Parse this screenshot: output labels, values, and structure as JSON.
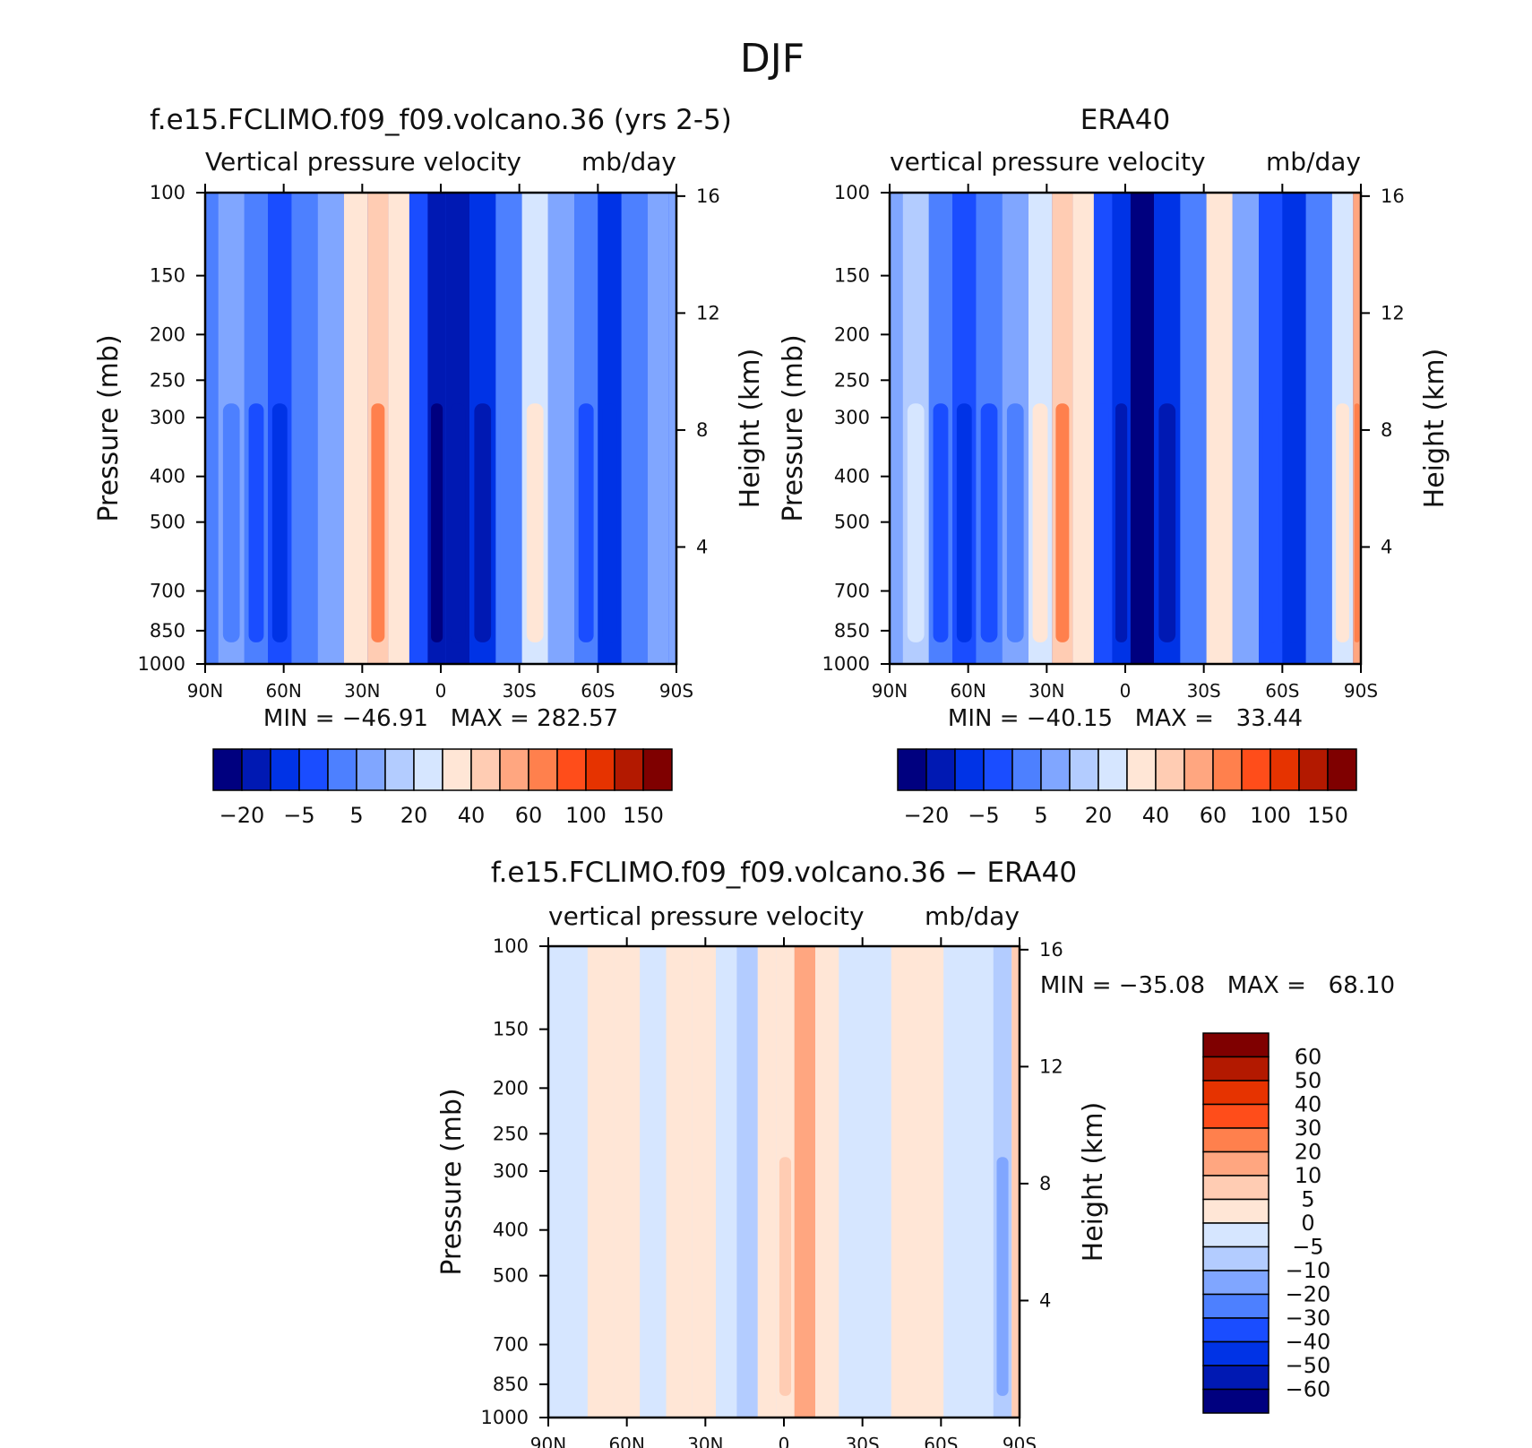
{
  "title": "DJF",
  "chart_data": [
    {
      "type": "contour",
      "title": "f.e15.FCLIMO.f09_f09.volcano.36 (yrs 2-5)",
      "subtitle": "Vertical pressure velocity",
      "units": "mb/day",
      "ylabel": "Pressure (mb)",
      "ylabel_right": "Height (km)",
      "x_ticks": [
        "90N",
        "60N",
        "30N",
        "0",
        "30S",
        "60S",
        "90S"
      ],
      "x_values": [
        90,
        60,
        30,
        0,
        -30,
        -60,
        -90
      ],
      "y_ticks": [
        100,
        150,
        200,
        250,
        300,
        400,
        500,
        700,
        850,
        1000
      ],
      "y_right_ticks": [
        16,
        12,
        8,
        4
      ],
      "ylim": [
        1000,
        100
      ],
      "stats": "MIN = −46.91   MAX = 282.57",
      "min": -46.91,
      "max": 282.57,
      "colorbar": {
        "orientation": "horizontal",
        "labels": [
          "−20",
          "−5",
          "5",
          "20",
          "40",
          "60",
          "100",
          "150"
        ],
        "colors": [
          "#00007f",
          "#0019b3",
          "#0033e6",
          "#1a4dff",
          "#4d80ff",
          "#80a6ff",
          "#b3ccff",
          "#d6e6ff",
          "#ffe6d6",
          "#ffccb3",
          "#ffa680",
          "#ff804d",
          "#ff4d1a",
          "#e63300",
          "#b31900",
          "#7f0000"
        ]
      },
      "columns": [
        {
          "lat": 90,
          "v": -6
        },
        {
          "lat": 80,
          "v": -4
        },
        {
          "lat": 70,
          "v": -9
        },
        {
          "lat": 62,
          "v": -12
        },
        {
          "lat": 52,
          "v": -6
        },
        {
          "lat": 42,
          "v": -2
        },
        {
          "lat": 32,
          "v": 12
        },
        {
          "lat": 24,
          "v": 30
        },
        {
          "lat": 16,
          "v": 12
        },
        {
          "lat": 8,
          "v": -10
        },
        {
          "lat": 2,
          "v": -38
        },
        {
          "lat": -6,
          "v": -28
        },
        {
          "lat": -16,
          "v": -22
        },
        {
          "lat": -26,
          "v": -6
        },
        {
          "lat": -36,
          "v": 8
        },
        {
          "lat": -46,
          "v": -2
        },
        {
          "lat": -56,
          "v": -9
        },
        {
          "lat": -64,
          "v": -16
        },
        {
          "lat": -74,
          "v": -7
        },
        {
          "lat": -84,
          "v": -2
        },
        {
          "lat": -90,
          "v": -1
        }
      ]
    },
    {
      "type": "contour",
      "title": "ERA40",
      "subtitle": "vertical pressure velocity",
      "units": "mb/day",
      "ylabel": "Pressure (mb)",
      "ylabel_right": "Height (km)",
      "x_ticks": [
        "90N",
        "60N",
        "30N",
        "0",
        "30S",
        "60S",
        "90S"
      ],
      "x_values": [
        90,
        60,
        30,
        0,
        -30,
        -60,
        -90
      ],
      "y_ticks": [
        100,
        150,
        200,
        250,
        300,
        400,
        500,
        700,
        850,
        1000
      ],
      "y_right_ticks": [
        16,
        12,
        8,
        4
      ],
      "ylim": [
        1000,
        100
      ],
      "stats": "MIN = −40.15   MAX =   33.44",
      "min": -40.15,
      "max": 33.44,
      "colorbar": {
        "orientation": "horizontal",
        "labels": [
          "−20",
          "−5",
          "5",
          "20",
          "40",
          "60",
          "100",
          "150"
        ],
        "colors": [
          "#00007f",
          "#0019b3",
          "#0033e6",
          "#1a4dff",
          "#4d80ff",
          "#80a6ff",
          "#b3ccff",
          "#d6e6ff",
          "#ffe6d6",
          "#ffccb3",
          "#ffa680",
          "#ff804d",
          "#ff4d1a",
          "#e63300",
          "#b31900",
          "#7f0000"
        ]
      },
      "columns": [
        {
          "lat": 90,
          "v": -2
        },
        {
          "lat": 80,
          "v": 4
        },
        {
          "lat": 70,
          "v": -8
        },
        {
          "lat": 62,
          "v": -14
        },
        {
          "lat": 52,
          "v": -8
        },
        {
          "lat": 42,
          "v": -4
        },
        {
          "lat": 32,
          "v": 10
        },
        {
          "lat": 24,
          "v": 30
        },
        {
          "lat": 16,
          "v": 14
        },
        {
          "lat": 8,
          "v": -10
        },
        {
          "lat": 2,
          "v": -24
        },
        {
          "lat": -6,
          "v": -40
        },
        {
          "lat": -16,
          "v": -22
        },
        {
          "lat": -26,
          "v": -6
        },
        {
          "lat": -36,
          "v": 14
        },
        {
          "lat": -46,
          "v": -2
        },
        {
          "lat": -56,
          "v": -10
        },
        {
          "lat": -64,
          "v": -18
        },
        {
          "lat": -74,
          "v": -6
        },
        {
          "lat": -84,
          "v": 8
        },
        {
          "lat": -90,
          "v": 33
        }
      ]
    },
    {
      "type": "contour",
      "title": "f.e15.FCLIMO.f09_f09.volcano.36 − ERA40",
      "subtitle": "vertical pressure velocity",
      "units": "mb/day",
      "ylabel": "Pressure (mb)",
      "ylabel_right": "Height (km)",
      "x_ticks": [
        "90N",
        "60N",
        "30N",
        "0",
        "30S",
        "60S",
        "90S"
      ],
      "x_values": [
        90,
        60,
        30,
        0,
        -30,
        -60,
        -90
      ],
      "y_ticks": [
        100,
        150,
        200,
        250,
        300,
        400,
        500,
        700,
        850,
        1000
      ],
      "y_right_ticks": [
        16,
        12,
        8,
        4
      ],
      "ylim": [
        1000,
        100
      ],
      "stats": "MIN = −35.08   MAX =   68.10",
      "min": -35.08,
      "max": 68.1,
      "colorbar": {
        "orientation": "vertical",
        "labels": [
          "60",
          "50",
          "40",
          "30",
          "20",
          "10",
          "5",
          "0",
          "−5",
          "−10",
          "−20",
          "−30",
          "−40",
          "−50",
          "−60"
        ],
        "colors": [
          "#7f0000",
          "#b31900",
          "#e63300",
          "#ff4d1a",
          "#ff804d",
          "#ffa680",
          "#ffccb3",
          "#ffe6d6",
          "#d6e6ff",
          "#b3ccff",
          "#80a6ff",
          "#4d80ff",
          "#1a4dff",
          "#0033e6",
          "#0019b3",
          "#00007f"
        ]
      },
      "columns": [
        {
          "lat": 90,
          "v": -3
        },
        {
          "lat": 80,
          "v": -2
        },
        {
          "lat": 70,
          "v": 2
        },
        {
          "lat": 60,
          "v": 1
        },
        {
          "lat": 50,
          "v": -2
        },
        {
          "lat": 40,
          "v": 1
        },
        {
          "lat": 30,
          "v": 3
        },
        {
          "lat": 22,
          "v": -1
        },
        {
          "lat": 14,
          "v": -6
        },
        {
          "lat": 6,
          "v": 3
        },
        {
          "lat": 0,
          "v": 4
        },
        {
          "lat": -8,
          "v": 12
        },
        {
          "lat": -16,
          "v": 3
        },
        {
          "lat": -26,
          "v": -1
        },
        {
          "lat": -36,
          "v": -2
        },
        {
          "lat": -46,
          "v": 2
        },
        {
          "lat": -56,
          "v": 1
        },
        {
          "lat": -66,
          "v": -2
        },
        {
          "lat": -76,
          "v": -2
        },
        {
          "lat": -84,
          "v": -8
        },
        {
          "lat": -90,
          "v": 6
        }
      ]
    }
  ]
}
